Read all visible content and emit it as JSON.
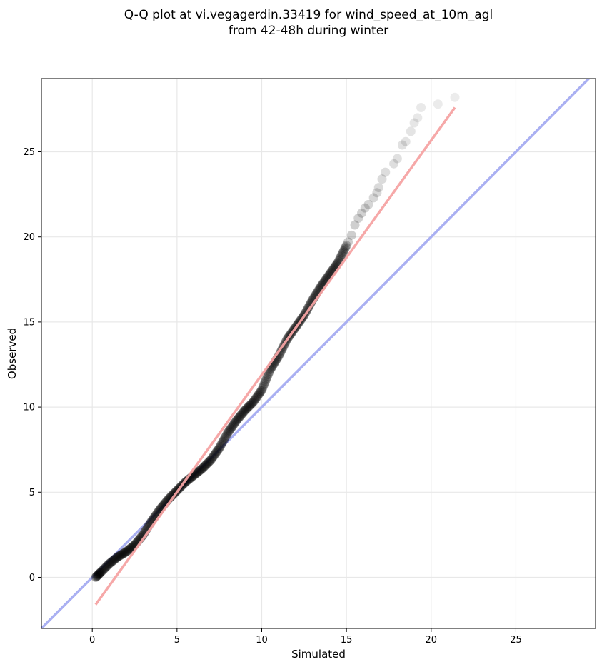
{
  "chart_data": {
    "type": "scatter",
    "title_lines": [
      "Q-Q plot at vi.vegagerdin.33419 for wind_speed_at_10m_agl",
      "from 42-48h during winter"
    ],
    "xlabel": "Simulated",
    "ylabel": "Observed",
    "xlim": [
      -3,
      29.7
    ],
    "ylim": [
      -3,
      29.3
    ],
    "xticks": [
      0,
      5,
      10,
      15,
      20,
      25
    ],
    "yticks": [
      0,
      5,
      10,
      15,
      20,
      25
    ],
    "grid": true,
    "reference_line": {
      "from": [
        -3,
        -3
      ],
      "to": [
        29.7,
        29.7
      ],
      "color": "#aab0f2"
    },
    "fit_line": {
      "from": [
        0.2,
        -1.6
      ],
      "to": [
        21.4,
        27.6
      ],
      "color": "#f5a3a3"
    },
    "quantile_curve": [
      [
        0.2,
        0.0
      ],
      [
        0.5,
        0.3
      ],
      [
        1.0,
        0.8
      ],
      [
        1.5,
        1.2
      ],
      [
        2.0,
        1.5
      ],
      [
        2.5,
        1.9
      ],
      [
        3.0,
        2.5
      ],
      [
        3.5,
        3.3
      ],
      [
        4.0,
        4.0
      ],
      [
        4.5,
        4.6
      ],
      [
        5.0,
        5.1
      ],
      [
        5.5,
        5.6
      ],
      [
        6.0,
        6.0
      ],
      [
        6.5,
        6.4
      ],
      [
        7.0,
        6.9
      ],
      [
        7.5,
        7.6
      ],
      [
        8.0,
        8.5
      ],
      [
        8.5,
        9.2
      ],
      [
        9.0,
        9.8
      ],
      [
        9.5,
        10.3
      ],
      [
        10.0,
        11.0
      ],
      [
        10.5,
        12.2
      ],
      [
        11.0,
        13.0
      ],
      [
        11.5,
        14.0
      ],
      [
        12.0,
        14.7
      ],
      [
        12.5,
        15.4
      ],
      [
        13.0,
        16.3
      ],
      [
        13.5,
        17.1
      ],
      [
        14.0,
        17.8
      ],
      [
        14.5,
        18.5
      ],
      [
        15.0,
        19.5
      ]
    ],
    "tail_points": [
      [
        15.1,
        19.7
      ],
      [
        15.3,
        20.1
      ],
      [
        15.5,
        20.7
      ],
      [
        15.7,
        21.1
      ],
      [
        15.9,
        21.4
      ],
      [
        16.1,
        21.7
      ],
      [
        16.3,
        21.9
      ],
      [
        16.6,
        22.3
      ],
      [
        16.8,
        22.6
      ],
      [
        16.9,
        22.9
      ],
      [
        17.1,
        23.4
      ],
      [
        17.3,
        23.8
      ],
      [
        17.8,
        24.3
      ],
      [
        18.0,
        24.6
      ],
      [
        18.3,
        25.4
      ],
      [
        18.5,
        25.6
      ],
      [
        18.8,
        26.2
      ],
      [
        19.0,
        26.7
      ],
      [
        19.2,
        27.0
      ],
      [
        19.4,
        27.6
      ],
      [
        20.4,
        27.8
      ],
      [
        21.4,
        28.2
      ]
    ],
    "colors": {
      "point": "#000000",
      "reference": "#aab0f2",
      "fit": "#f5a3a3",
      "grid": "#e8e8e8"
    }
  }
}
